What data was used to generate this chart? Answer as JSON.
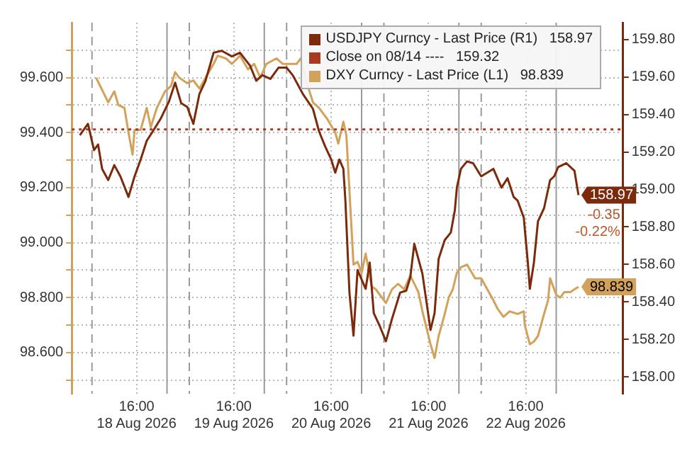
{
  "chart_data": {
    "type": "line",
    "marker": "none",
    "grid": true,
    "legend": "top right",
    "xlim": [
      "2026-08-18T00:00",
      "2026-08-23T16:00"
    ],
    "xticks": [
      {
        "value": "2026-08-18T16:00",
        "label": "16:00\n18 Aug 2026"
      },
      {
        "value": "2026-08-19T16:00",
        "label": "16:00\n19 Aug 2026"
      },
      {
        "value": "2026-08-20T16:00",
        "label": "16:00\n20 Aug 2026"
      },
      {
        "value": "2026-08-21T16:00",
        "label": "16:00\n21 Aug 2026"
      },
      {
        "value": "2026-08-22T16:00",
        "label": "16:00\n22 Aug 2026"
      }
    ],
    "ylim": [
      98.45,
      99.8
    ],
    "yticks": [
      {
        "value": 98.5,
        "label": null
      },
      {
        "value": 98.6,
        "label": "98.600"
      },
      {
        "value": 98.7,
        "label": null
      },
      {
        "value": 98.8,
        "label": "98.800"
      },
      {
        "value": 98.9,
        "label": null
      },
      {
        "value": 99.0,
        "label": "99.000"
      },
      {
        "value": 99.1,
        "label": null
      },
      {
        "value": 99.2,
        "label": "99.200"
      },
      {
        "value": 99.3,
        "label": null
      },
      {
        "value": 99.4,
        "label": "99.400"
      },
      {
        "value": 99.5,
        "label": null
      },
      {
        "value": 99.6,
        "label": "99.600"
      },
      {
        "value": 99.7,
        "label": null
      }
    ],
    "y2lim": [
      157.91,
      159.89
    ],
    "y2ticks": [
      {
        "value": 158.0,
        "label": "158.00"
      },
      {
        "value": 158.2,
        "label": "158.20"
      },
      {
        "value": 158.4,
        "label": "158.40"
      },
      {
        "value": 158.6,
        "label": "158.60"
      },
      {
        "value": 158.8,
        "label": "158.80"
      },
      {
        "value": 159.0,
        "label": "159.00"
      },
      {
        "value": 159.2,
        "label": "159.20"
      },
      {
        "value": 159.4,
        "label": "159.40"
      },
      {
        "value": 159.6,
        "label": "159.60"
      },
      {
        "value": 159.8,
        "label": "159.80"
      }
    ],
    "ref_lines": [
      {
        "axis": "x",
        "value": "2026-08-18T05:00",
        "line_style": "dashed",
        "color": "#9a9a9a"
      },
      {
        "axis": "x",
        "value": "2026-08-18T23:30",
        "line_style": "solid",
        "color": "#9a9a9a"
      },
      {
        "axis": "x",
        "value": "2026-08-19T05:00",
        "line_style": "dashed",
        "color": "#9a9a9a"
      },
      {
        "axis": "x",
        "value": "2026-08-19T23:30",
        "line_style": "solid",
        "color": "#9a9a9a"
      },
      {
        "axis": "x",
        "value": "2026-08-20T05:00",
        "line_style": "dashed",
        "color": "#9a9a9a"
      },
      {
        "axis": "x",
        "value": "2026-08-20T23:30",
        "line_style": "solid",
        "color": "#9a9a9a"
      },
      {
        "axis": "x",
        "value": "2026-08-21T05:00",
        "line_style": "dashed",
        "color": "#9a9a9a"
      },
      {
        "axis": "x",
        "value": "2026-08-21T23:30",
        "line_style": "solid",
        "color": "#9a9a9a"
      },
      {
        "axis": "x",
        "value": "2026-08-22T05:00",
        "line_style": "dashed",
        "color": "#9a9a9a"
      },
      {
        "axis": "x",
        "value": "2026-08-22T23:30",
        "line_style": "solid",
        "color": "#9a9a9a"
      }
    ],
    "annotations": [
      "-0.35",
      "-0.22%"
    ],
    "series": [
      {
        "name": "USDJPY Curncy - Last Price (R1)   158.97",
        "color": "#7b2a0c",
        "axis": "y2",
        "line_style": "solid",
        "x": [
          "2026-08-18T02:00",
          "2026-08-18T04:00",
          "2026-08-18T05:30",
          "2026-08-18T06:30",
          "2026-08-18T07:30",
          "2026-08-18T09:00",
          "2026-08-18T10:30",
          "2026-08-18T12:00",
          "2026-08-18T14:00",
          "2026-08-18T15:30",
          "2026-08-18T17:00",
          "2026-08-18T18:30",
          "2026-08-18T20:00",
          "2026-08-18T22:00",
          "2026-08-19T00:00",
          "2026-08-19T01:30",
          "2026-08-19T03:00",
          "2026-08-19T04:30",
          "2026-08-19T06:00",
          "2026-08-19T07:30",
          "2026-08-19T09:00",
          "2026-08-19T11:00",
          "2026-08-19T13:00",
          "2026-08-19T15:30",
          "2026-08-19T17:30",
          "2026-08-19T20:00",
          "2026-08-19T21:30",
          "2026-08-19T23:00",
          "2026-08-20T01:00",
          "2026-08-20T03:00",
          "2026-08-20T05:00",
          "2026-08-20T06:30",
          "2026-08-20T09:00",
          "2026-08-20T11:30",
          "2026-08-20T13:00",
          "2026-08-20T14:30",
          "2026-08-20T16:00",
          "2026-08-20T17:00",
          "2026-08-20T18:00",
          "2026-08-20T19:00",
          "2026-08-20T19:30",
          "2026-08-20T20:30",
          "2026-08-20T21:30",
          "2026-08-20T22:30",
          "2026-08-21T00:30",
          "2026-08-21T01:30",
          "2026-08-21T02:30",
          "2026-08-21T04:00",
          "2026-08-21T05:30",
          "2026-08-21T07:00",
          "2026-08-21T09:00",
          "2026-08-21T10:30",
          "2026-08-21T11:30",
          "2026-08-21T12:30",
          "2026-08-21T14:30",
          "2026-08-21T16:30",
          "2026-08-21T17:30",
          "2026-08-21T18:30",
          "2026-08-21T20:00",
          "2026-08-21T21:30",
          "2026-08-21T22:30",
          "2026-08-21T23:00",
          "2026-08-22T00:00",
          "2026-08-22T01:30",
          "2026-08-22T03:00",
          "2026-08-22T05:00",
          "2026-08-22T06:30",
          "2026-08-22T08:00",
          "2026-08-22T10:00",
          "2026-08-22T11:30",
          "2026-08-22T13:00",
          "2026-08-22T14:00",
          "2026-08-22T15:30",
          "2026-08-22T16:30",
          "2026-08-22T17:00",
          "2026-08-22T18:00",
          "2026-08-22T19:00",
          "2026-08-22T20:30",
          "2026-08-22T22:00",
          "2026-08-22T23:00",
          "2026-08-23T00:00",
          "2026-08-23T02:00",
          "2026-08-23T04:00",
          "2026-08-23T05:00"
        ],
        "values": [
          159.29,
          159.35,
          159.21,
          159.24,
          159.11,
          159.05,
          159.13,
          159.07,
          158.96,
          159.07,
          159.16,
          159.26,
          159.31,
          159.38,
          159.47,
          159.57,
          159.46,
          159.44,
          159.35,
          159.51,
          159.58,
          159.73,
          159.74,
          159.71,
          159.73,
          159.66,
          159.58,
          159.61,
          159.59,
          159.65,
          159.65,
          159.61,
          159.51,
          159.43,
          159.31,
          159.23,
          159.16,
          159.09,
          159.16,
          159.11,
          158.94,
          158.45,
          158.22,
          158.57,
          158.47,
          158.61,
          158.34,
          158.27,
          158.19,
          158.31,
          158.45,
          158.46,
          158.53,
          158.71,
          158.55,
          158.25,
          158.34,
          158.63,
          158.73,
          158.77,
          158.89,
          159.01,
          159.11,
          159.15,
          159.14,
          159.07,
          159.09,
          159.11,
          159.01,
          159.06,
          158.96,
          158.94,
          158.85,
          158.61,
          158.47,
          158.61,
          158.83,
          158.9,
          159.05,
          159.07,
          159.12,
          159.14,
          159.1,
          158.97
        ],
        "value_labels": [
          null,
          null,
          null,
          null,
          null,
          null,
          null,
          null,
          null,
          null,
          null,
          null,
          null,
          null,
          null,
          null,
          null,
          null,
          null,
          null,
          null,
          null,
          null,
          null,
          null,
          null,
          null,
          null,
          null,
          null,
          null,
          null,
          null,
          null,
          null,
          null,
          null,
          null,
          null,
          null,
          null,
          null,
          null,
          null,
          null,
          null,
          null,
          null,
          null,
          null,
          null,
          null,
          null,
          null,
          null,
          null,
          null,
          null,
          null,
          null,
          null,
          null,
          null,
          null,
          null,
          null,
          null,
          null,
          null,
          null,
          null,
          null,
          null,
          null,
          null,
          null,
          null,
          null,
          null,
          null,
          null,
          null,
          null,
          "158.97"
        ]
      },
      {
        "name": "Close on 08/14 ----   159.32",
        "color": "#a83a22",
        "axis": "y2",
        "line_style": "dotted",
        "x": [
          "2026-08-18T00:00",
          "2026-08-23T16:00"
        ],
        "values": [
          159.32,
          159.32
        ]
      },
      {
        "name": "DXY Curncy - Last Price (L1)   98.839",
        "color": "#d2a15a",
        "line_style": "solid",
        "x": [
          "2026-08-18T06:00",
          "2026-08-18T07:00",
          "2026-08-18T08:00",
          "2026-08-18T09:00",
          "2026-08-18T10:30",
          "2026-08-18T11:30",
          "2026-08-18T13:00",
          "2026-08-18T14:00",
          "2026-08-18T15:00",
          "2026-08-18T15:30",
          "2026-08-18T17:00",
          "2026-08-18T18:30",
          "2026-08-18T19:30",
          "2026-08-18T21:00",
          "2026-08-18T23:00",
          "2026-08-19T00:30",
          "2026-08-19T01:30",
          "2026-08-19T02:30",
          "2026-08-19T04:30",
          "2026-08-19T06:00",
          "2026-08-19T07:30",
          "2026-08-19T09:00",
          "2026-08-19T11:00",
          "2026-08-19T12:00",
          "2026-08-19T14:00",
          "2026-08-19T15:30",
          "2026-08-19T17:30",
          "2026-08-19T19:30",
          "2026-08-19T21:00",
          "2026-08-19T22:30",
          "2026-08-20T00:00",
          "2026-08-20T02:30",
          "2026-08-20T04:00",
          "2026-08-20T05:30",
          "2026-08-20T07:30",
          "2026-08-20T08:30",
          "2026-08-20T10:00",
          "2026-08-20T11:30",
          "2026-08-20T13:00",
          "2026-08-20T15:00",
          "2026-08-20T17:00",
          "2026-08-20T17:45",
          "2026-08-20T19:00",
          "2026-08-20T19:45",
          "2026-08-20T21:30",
          "2026-08-20T22:30",
          "2026-08-20T23:30",
          "2026-08-21T00:30",
          "2026-08-21T02:00",
          "2026-08-21T03:00",
          "2026-08-21T04:30",
          "2026-08-21T05:30",
          "2026-08-21T07:00",
          "2026-08-21T08:30",
          "2026-08-21T10:00",
          "2026-08-21T11:30",
          "2026-08-21T13:30",
          "2026-08-21T14:30",
          "2026-08-21T15:30",
          "2026-08-21T16:30",
          "2026-08-21T17:30",
          "2026-08-21T18:30",
          "2026-08-21T20:00",
          "2026-08-21T21:00",
          "2026-08-21T22:00",
          "2026-08-21T23:00",
          "2026-08-22T00:00",
          "2026-08-22T01:30",
          "2026-08-22T03:30",
          "2026-08-22T05:00",
          "2026-08-22T06:30",
          "2026-08-22T08:00",
          "2026-08-22T09:00",
          "2026-08-22T10:30",
          "2026-08-22T12:00",
          "2026-08-22T14:00",
          "2026-08-22T15:30",
          "2026-08-22T15:45",
          "2026-08-22T17:00",
          "2026-08-22T18:00",
          "2026-08-22T19:00",
          "2026-08-22T20:30",
          "2026-08-22T21:30",
          "2026-08-22T22:00",
          "2026-08-22T23:30",
          "2026-08-23T00:30",
          "2026-08-23T01:30",
          "2026-08-23T03:00",
          "2026-08-23T04:00",
          "2026-08-23T05:00"
        ],
        "values": [
          99.6,
          99.57,
          99.54,
          99.51,
          99.55,
          99.5,
          99.49,
          99.4,
          99.32,
          99.41,
          99.41,
          99.49,
          99.42,
          99.49,
          99.55,
          99.57,
          99.62,
          99.6,
          99.58,
          99.59,
          99.56,
          99.6,
          99.65,
          99.68,
          99.67,
          99.65,
          99.68,
          99.63,
          99.65,
          99.6,
          99.65,
          99.67,
          99.65,
          99.65,
          99.65,
          99.67,
          99.58,
          99.51,
          99.49,
          99.45,
          99.4,
          99.36,
          99.44,
          99.39,
          98.92,
          98.93,
          98.89,
          98.96,
          98.84,
          98.83,
          98.8,
          98.78,
          98.83,
          98.85,
          98.83,
          98.88,
          98.82,
          98.75,
          98.69,
          98.63,
          98.58,
          98.66,
          98.74,
          98.8,
          98.83,
          98.89,
          98.91,
          98.92,
          98.87,
          98.87,
          98.83,
          98.79,
          98.76,
          98.73,
          98.75,
          98.74,
          98.75,
          98.7,
          98.63,
          98.64,
          98.66,
          98.74,
          98.79,
          98.87,
          98.81,
          98.8,
          98.82,
          98.82,
          98.83,
          98.839
        ],
        "value_labels": [
          null,
          null,
          null,
          null,
          null,
          null,
          null,
          null,
          null,
          null,
          null,
          null,
          null,
          null,
          null,
          null,
          null,
          null,
          null,
          null,
          null,
          null,
          null,
          null,
          null,
          null,
          null,
          null,
          null,
          null,
          null,
          null,
          null,
          null,
          null,
          null,
          null,
          null,
          null,
          null,
          null,
          null,
          null,
          null,
          null,
          null,
          null,
          null,
          null,
          null,
          null,
          null,
          null,
          null,
          null,
          null,
          null,
          null,
          null,
          null,
          null,
          null,
          null,
          null,
          null,
          null,
          null,
          null,
          null,
          null,
          null,
          null,
          null,
          null,
          null,
          null,
          null,
          null,
          null,
          null,
          null,
          null,
          null,
          null,
          null,
          null,
          null,
          null,
          null,
          "98.839"
        ]
      }
    ]
  }
}
